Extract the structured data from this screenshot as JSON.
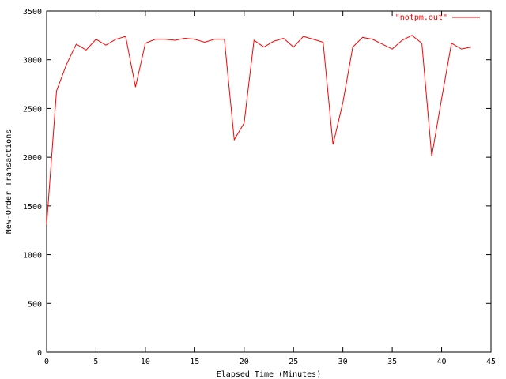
{
  "chart_data": {
    "type": "line",
    "title": "",
    "xlabel": "Elapsed Time (Minutes)",
    "ylabel": "New-Order Transactions",
    "xlim": [
      0,
      45
    ],
    "ylim": [
      0,
      3500
    ],
    "xticks": [
      0,
      5,
      10,
      15,
      20,
      25,
      30,
      35,
      40,
      45
    ],
    "yticks": [
      0,
      500,
      1000,
      1500,
      2000,
      2500,
      3000,
      3500
    ],
    "grid": false,
    "legend_position": "top-right",
    "series": [
      {
        "name": "\"notpm.out\"",
        "color": "#ff0000",
        "x": [
          0,
          1,
          2,
          3,
          4,
          5,
          6,
          7,
          8,
          9,
          10,
          11,
          12,
          13,
          14,
          15,
          16,
          17,
          18,
          19,
          20,
          21,
          22,
          23,
          24,
          25,
          26,
          27,
          28,
          29,
          30,
          31,
          32,
          33,
          34,
          35,
          36,
          37,
          38,
          39,
          40,
          41,
          42,
          43
        ],
        "y": [
          1310,
          2680,
          2950,
          3160,
          3100,
          3210,
          3150,
          3210,
          3240,
          2720,
          3170,
          3210,
          3210,
          3200,
          3220,
          3210,
          3180,
          3210,
          3210,
          2180,
          2350,
          3200,
          3130,
          3190,
          3220,
          3130,
          3240,
          3210,
          3180,
          2130,
          2560,
          3130,
          3230,
          3210,
          3160,
          3110,
          3200,
          3250,
          3170,
          2010,
          2600,
          3170,
          3110,
          3130
        ]
      }
    ]
  }
}
